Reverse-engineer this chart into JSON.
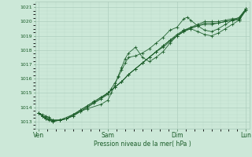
{
  "title": "Pression niveau de la mer( hPa )",
  "bg_color": "#cce8d8",
  "grid_color_major": "#a8c8b8",
  "grid_color_minor": "#b8d8c8",
  "line_color": "#1a5c28",
  "ylim": [
    1012.5,
    1021.4
  ],
  "yticks": [
    1013,
    1014,
    1015,
    1016,
    1017,
    1018,
    1019,
    1020,
    1021
  ],
  "xlabel_ticks": [
    0,
    1,
    2,
    3
  ],
  "xlabel_labels": [
    "Ven",
    "Sam",
    "Dim",
    "Lun"
  ],
  "xlim": [
    -0.05,
    3.05
  ],
  "lines": [
    {
      "x": [
        0.0,
        0.05,
        0.1,
        0.15,
        0.2,
        0.3,
        0.4,
        0.5,
        0.6,
        0.7,
        0.8,
        0.9,
        1.0,
        1.05,
        1.1,
        1.15,
        1.2,
        1.25,
        1.3,
        1.4,
        1.5,
        1.6,
        1.7,
        1.8,
        1.9,
        2.0,
        2.1,
        2.15,
        2.2,
        2.3,
        2.4,
        2.5,
        2.6,
        2.7,
        2.8,
        2.9,
        3.0
      ],
      "y": [
        1013.6,
        1013.5,
        1013.4,
        1013.3,
        1013.1,
        1013.1,
        1013.2,
        1013.4,
        1013.7,
        1014.0,
        1014.3,
        1014.6,
        1014.9,
        1015.3,
        1015.7,
        1016.1,
        1016.6,
        1017.1,
        1017.5,
        1017.6,
        1017.8,
        1018.1,
        1018.5,
        1018.9,
        1019.4,
        1019.6,
        1020.2,
        1020.3,
        1020.1,
        1019.7,
        1019.4,
        1019.3,
        1019.5,
        1019.8,
        1020.1,
        1020.3,
        1020.9
      ]
    },
    {
      "x": [
        0.0,
        0.05,
        0.1,
        0.15,
        0.2,
        0.3,
        0.5,
        0.7,
        0.9,
        1.0,
        1.05,
        1.1,
        1.15,
        1.2,
        1.25,
        1.3,
        1.4,
        1.5,
        1.6,
        1.7,
        1.8,
        1.9,
        2.0,
        2.1,
        2.2,
        2.3,
        2.4,
        2.5,
        2.6,
        2.7,
        2.8,
        2.9,
        3.0
      ],
      "y": [
        1013.6,
        1013.4,
        1013.2,
        1013.1,
        1013.0,
        1013.1,
        1013.5,
        1013.9,
        1014.2,
        1014.5,
        1015.0,
        1015.5,
        1016.2,
        1016.8,
        1017.4,
        1017.8,
        1018.2,
        1017.5,
        1017.2,
        1017.5,
        1017.9,
        1018.5,
        1019.0,
        1019.4,
        1019.5,
        1019.3,
        1019.1,
        1019.0,
        1019.2,
        1019.5,
        1019.8,
        1020.1,
        1020.8
      ]
    },
    {
      "x": [
        0.0,
        0.05,
        0.1,
        0.15,
        0.2,
        0.3,
        0.4,
        0.5,
        0.6,
        0.7,
        0.8,
        0.9,
        1.0,
        1.1,
        1.2,
        1.3,
        1.4,
        1.5,
        1.6,
        1.7,
        1.8,
        1.9,
        2.0,
        2.1,
        2.2,
        2.3,
        2.4,
        2.5,
        2.6,
        2.7,
        2.8,
        2.9,
        3.0
      ],
      "y": [
        1013.6,
        1013.4,
        1013.3,
        1013.2,
        1013.1,
        1013.1,
        1013.2,
        1013.5,
        1013.8,
        1014.1,
        1014.4,
        1014.7,
        1015.0,
        1015.4,
        1015.8,
        1016.3,
        1016.7,
        1017.1,
        1017.5,
        1017.9,
        1018.3,
        1018.7,
        1019.1,
        1019.4,
        1019.6,
        1019.7,
        1019.8,
        1019.8,
        1019.9,
        1020.0,
        1020.1,
        1020.2,
        1020.9
      ]
    },
    {
      "x": [
        0.0,
        0.05,
        0.1,
        0.2,
        0.3,
        0.4,
        0.5,
        0.6,
        0.7,
        0.8,
        0.9,
        1.0,
        1.1,
        1.2,
        1.3,
        1.4,
        1.5,
        1.6,
        1.7,
        1.8,
        1.9,
        2.0,
        2.1,
        2.2,
        2.3,
        2.4,
        2.5,
        2.6,
        2.7,
        2.8,
        2.9,
        3.0
      ],
      "y": [
        1013.6,
        1013.4,
        1013.2,
        1013.1,
        1013.1,
        1013.2,
        1013.4,
        1013.7,
        1014.0,
        1014.3,
        1014.6,
        1015.0,
        1015.4,
        1015.8,
        1016.3,
        1016.7,
        1017.1,
        1017.5,
        1017.9,
        1018.3,
        1018.7,
        1019.0,
        1019.3,
        1019.6,
        1019.8,
        1020.0,
        1020.0,
        1020.0,
        1020.1,
        1020.2,
        1020.2,
        1020.9
      ]
    },
    {
      "x": [
        0.0,
        0.05,
        0.1,
        0.2,
        0.3,
        0.4,
        0.5,
        0.6,
        0.7,
        0.8,
        0.9,
        1.0,
        1.1,
        1.2,
        1.3,
        1.4,
        1.5,
        1.6,
        1.7,
        1.8,
        1.9,
        2.0,
        2.1,
        2.2,
        2.3,
        2.4,
        2.5,
        2.6,
        2.7,
        2.8,
        2.9,
        3.0
      ],
      "y": [
        1013.6,
        1013.4,
        1013.2,
        1013.0,
        1013.1,
        1013.2,
        1013.5,
        1013.8,
        1014.1,
        1014.4,
        1014.7,
        1015.0,
        1015.4,
        1015.8,
        1016.3,
        1016.7,
        1017.1,
        1017.5,
        1017.9,
        1018.2,
        1018.6,
        1019.0,
        1019.3,
        1019.5,
        1019.7,
        1019.9,
        1019.9,
        1019.9,
        1020.0,
        1020.1,
        1020.1,
        1020.8
      ]
    }
  ]
}
